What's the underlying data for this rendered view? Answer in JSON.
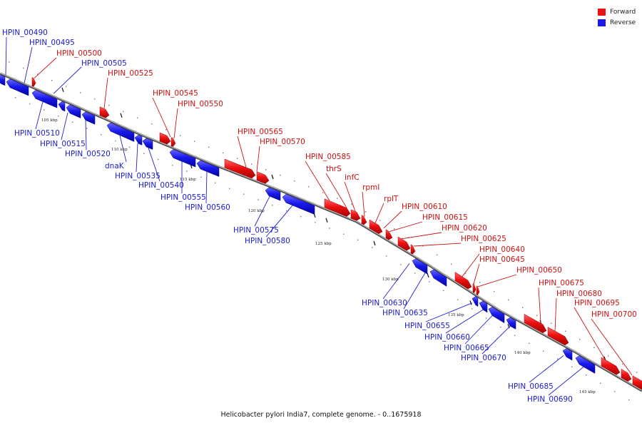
{
  "caption": "Helicobacter pylori India7, complete genome. - 0..1675918",
  "legend": {
    "forward": {
      "label": "Forward",
      "color": "#ee1111"
    },
    "reverse": {
      "label": "Reverse",
      "color": "#1a1aee"
    }
  },
  "scale": {
    "unit": "kbp",
    "ticks": [
      105,
      110,
      115,
      120,
      125,
      130,
      135,
      140,
      145
    ]
  },
  "genes": {
    "forward": [
      "HPIN_00500",
      "HPIN_00525",
      "HPIN_00545",
      "HPIN_00550",
      "HPIN_00565",
      "HPIN_00570",
      "HPIN_00585",
      "thrS",
      "infC",
      "rpmI",
      "rplT",
      "HPIN_00610",
      "HPIN_00615",
      "HPIN_00620",
      "HPIN_00625",
      "HPIN_00640",
      "HPIN_00645",
      "HPIN_00650",
      "HPIN_00675",
      "HPIN_00680",
      "HPIN_00695",
      "HPIN_00700"
    ],
    "reverse": [
      "HPIN_00490",
      "HPIN_00495",
      "HPIN_00505",
      "HPIN_00510",
      "HPIN_00515",
      "HPIN_00520",
      "dnaK",
      "HPIN_00535",
      "HPIN_00540",
      "HPIN_00555",
      "HPIN_00560",
      "HPIN_00575",
      "HPIN_00580",
      "HPIN_00630",
      "HPIN_00635",
      "HPIN_00655",
      "HPIN_00660",
      "HPIN_00665",
      "HPIN_00670",
      "HPIN_00685",
      "HPIN_00690"
    ]
  }
}
